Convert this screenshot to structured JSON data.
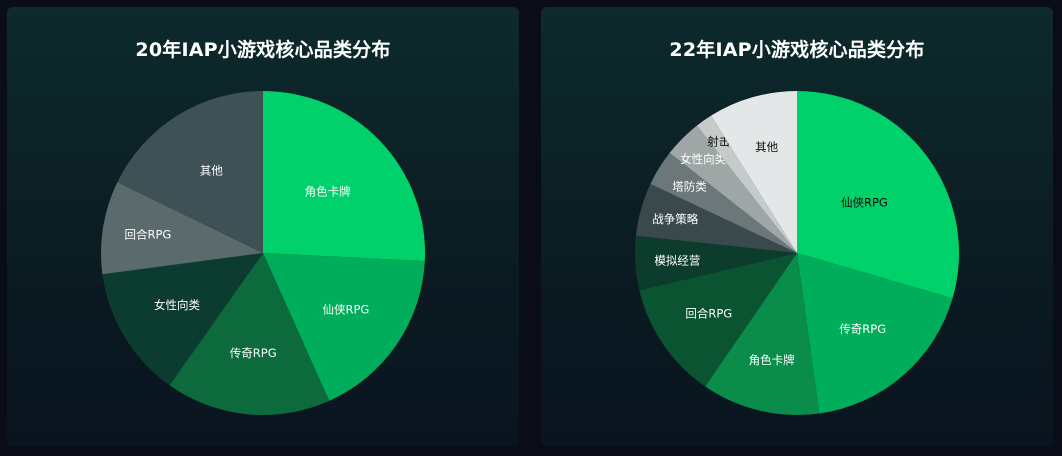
{
  "charts": [
    {
      "title": "20年IAP小游戏核心品类分布",
      "chart_data": {
        "type": "pie",
        "title": "20年IAP小游戏核心品类分布",
        "slices": [
          {
            "label": "角色卡牌",
            "value": 25.8,
            "color": "#00d16b",
            "text_color": "#ffffff"
          },
          {
            "label": "仙侠RPG",
            "value": 17.5,
            "color": "#00ad5a",
            "text_color": "#ffffff"
          },
          {
            "label": "传奇RPG",
            "value": 16.5,
            "color": "#0c6a3c",
            "text_color": "#ffffff"
          },
          {
            "label": "女性向类",
            "value": 13.1,
            "color": "#0c3b2f",
            "text_color": "#ffffff"
          },
          {
            "label": "回合RPG",
            "value": 9.3,
            "color": "#5b6a6c",
            "text_color": "#ffffff"
          },
          {
            "label": "其他",
            "value": 17.8,
            "color": "#3e5154",
            "text_color": "#ffffff"
          }
        ]
      }
    },
    {
      "title": "22年IAP小游戏核心品类分布",
      "chart_data": {
        "type": "pie",
        "title": "22年IAP小游戏核心品类分布",
        "slices": [
          {
            "label": "仙侠RPG",
            "value": 29.5,
            "color": "#00d16b",
            "text_color": "#0a0a0a"
          },
          {
            "label": "传奇RPG",
            "value": 18.3,
            "color": "#00ad5a",
            "text_color": "#ffffff"
          },
          {
            "label": "角色卡牌",
            "value": 11.8,
            "color": "#0a8c4b",
            "text_color": "#ffffff"
          },
          {
            "label": "回合RPG",
            "value": 11.7,
            "color": "#0b5432",
            "text_color": "#ffffff"
          },
          {
            "label": "模拟经营",
            "value": 5.4,
            "color": "#0c3d2c",
            "text_color": "#ffffff"
          },
          {
            "label": "战争策略",
            "value": 5.3,
            "color": "#3a4a4c",
            "text_color": "#ffffff"
          },
          {
            "label": "塔防类",
            "value": 3.6,
            "color": "#6b7778",
            "text_color": "#ffffff"
          },
          {
            "label": "女性向类",
            "value": 3.8,
            "color": "#9ea6a6",
            "text_color": "#ffffff"
          },
          {
            "label": "射击",
            "value": 1.7,
            "color": "#c5caca",
            "text_color": "#111111"
          },
          {
            "label": "其他",
            "value": 8.9,
            "color": "#e4e7e8",
            "text_color": "#111111"
          }
        ]
      }
    }
  ]
}
